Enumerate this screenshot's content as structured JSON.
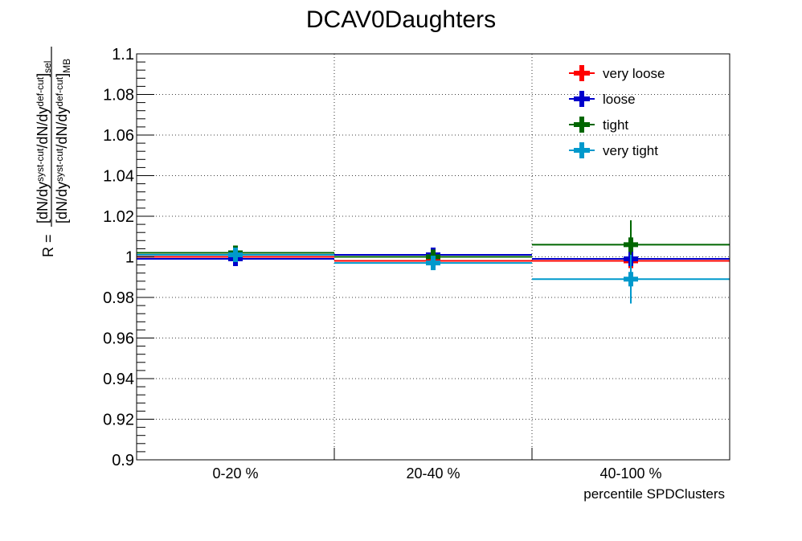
{
  "chart_data": {
    "type": "scatter",
    "title": "DCAV0Daughters",
    "xlabel": "percentile SPDClusters",
    "ylabel": {
      "prefix": "R =",
      "numerator": "[dN/dy^{syst-cut}/dN/dy^{def-cut}]_{sel}",
      "denominator": "[dN/dy^{syst-cut}/dN/dy^{def-cut}]_{MB}"
    },
    "categories": [
      "0-20 %",
      "20-40 %",
      "40-100 %"
    ],
    "ylim": [
      0.9,
      1.1
    ],
    "yticks": [
      "0.9",
      "0.92",
      "0.94",
      "0.96",
      "0.98",
      "1",
      "1.02",
      "1.04",
      "1.06",
      "1.08",
      "1.1"
    ],
    "grid": true,
    "legend_position": "top-right",
    "series": [
      {
        "name": "very loose",
        "color": "#ff0000",
        "values": [
          1.0,
          0.998,
          0.998
        ],
        "errors": [
          0.002,
          0.002,
          0.003
        ]
      },
      {
        "name": "loose",
        "color": "#0000cc",
        "values": [
          0.999,
          1.001,
          0.999
        ],
        "errors": [
          0.003,
          0.002,
          0.004
        ]
      },
      {
        "name": "tight",
        "color": "#006600",
        "values": [
          1.002,
          1.0,
          1.006
        ],
        "errors": [
          0.003,
          0.002,
          0.012
        ]
      },
      {
        "name": "very tight",
        "color": "#0099cc",
        "values": [
          1.001,
          0.997,
          0.989
        ],
        "errors": [
          0.002,
          0.003,
          0.012
        ]
      }
    ]
  }
}
